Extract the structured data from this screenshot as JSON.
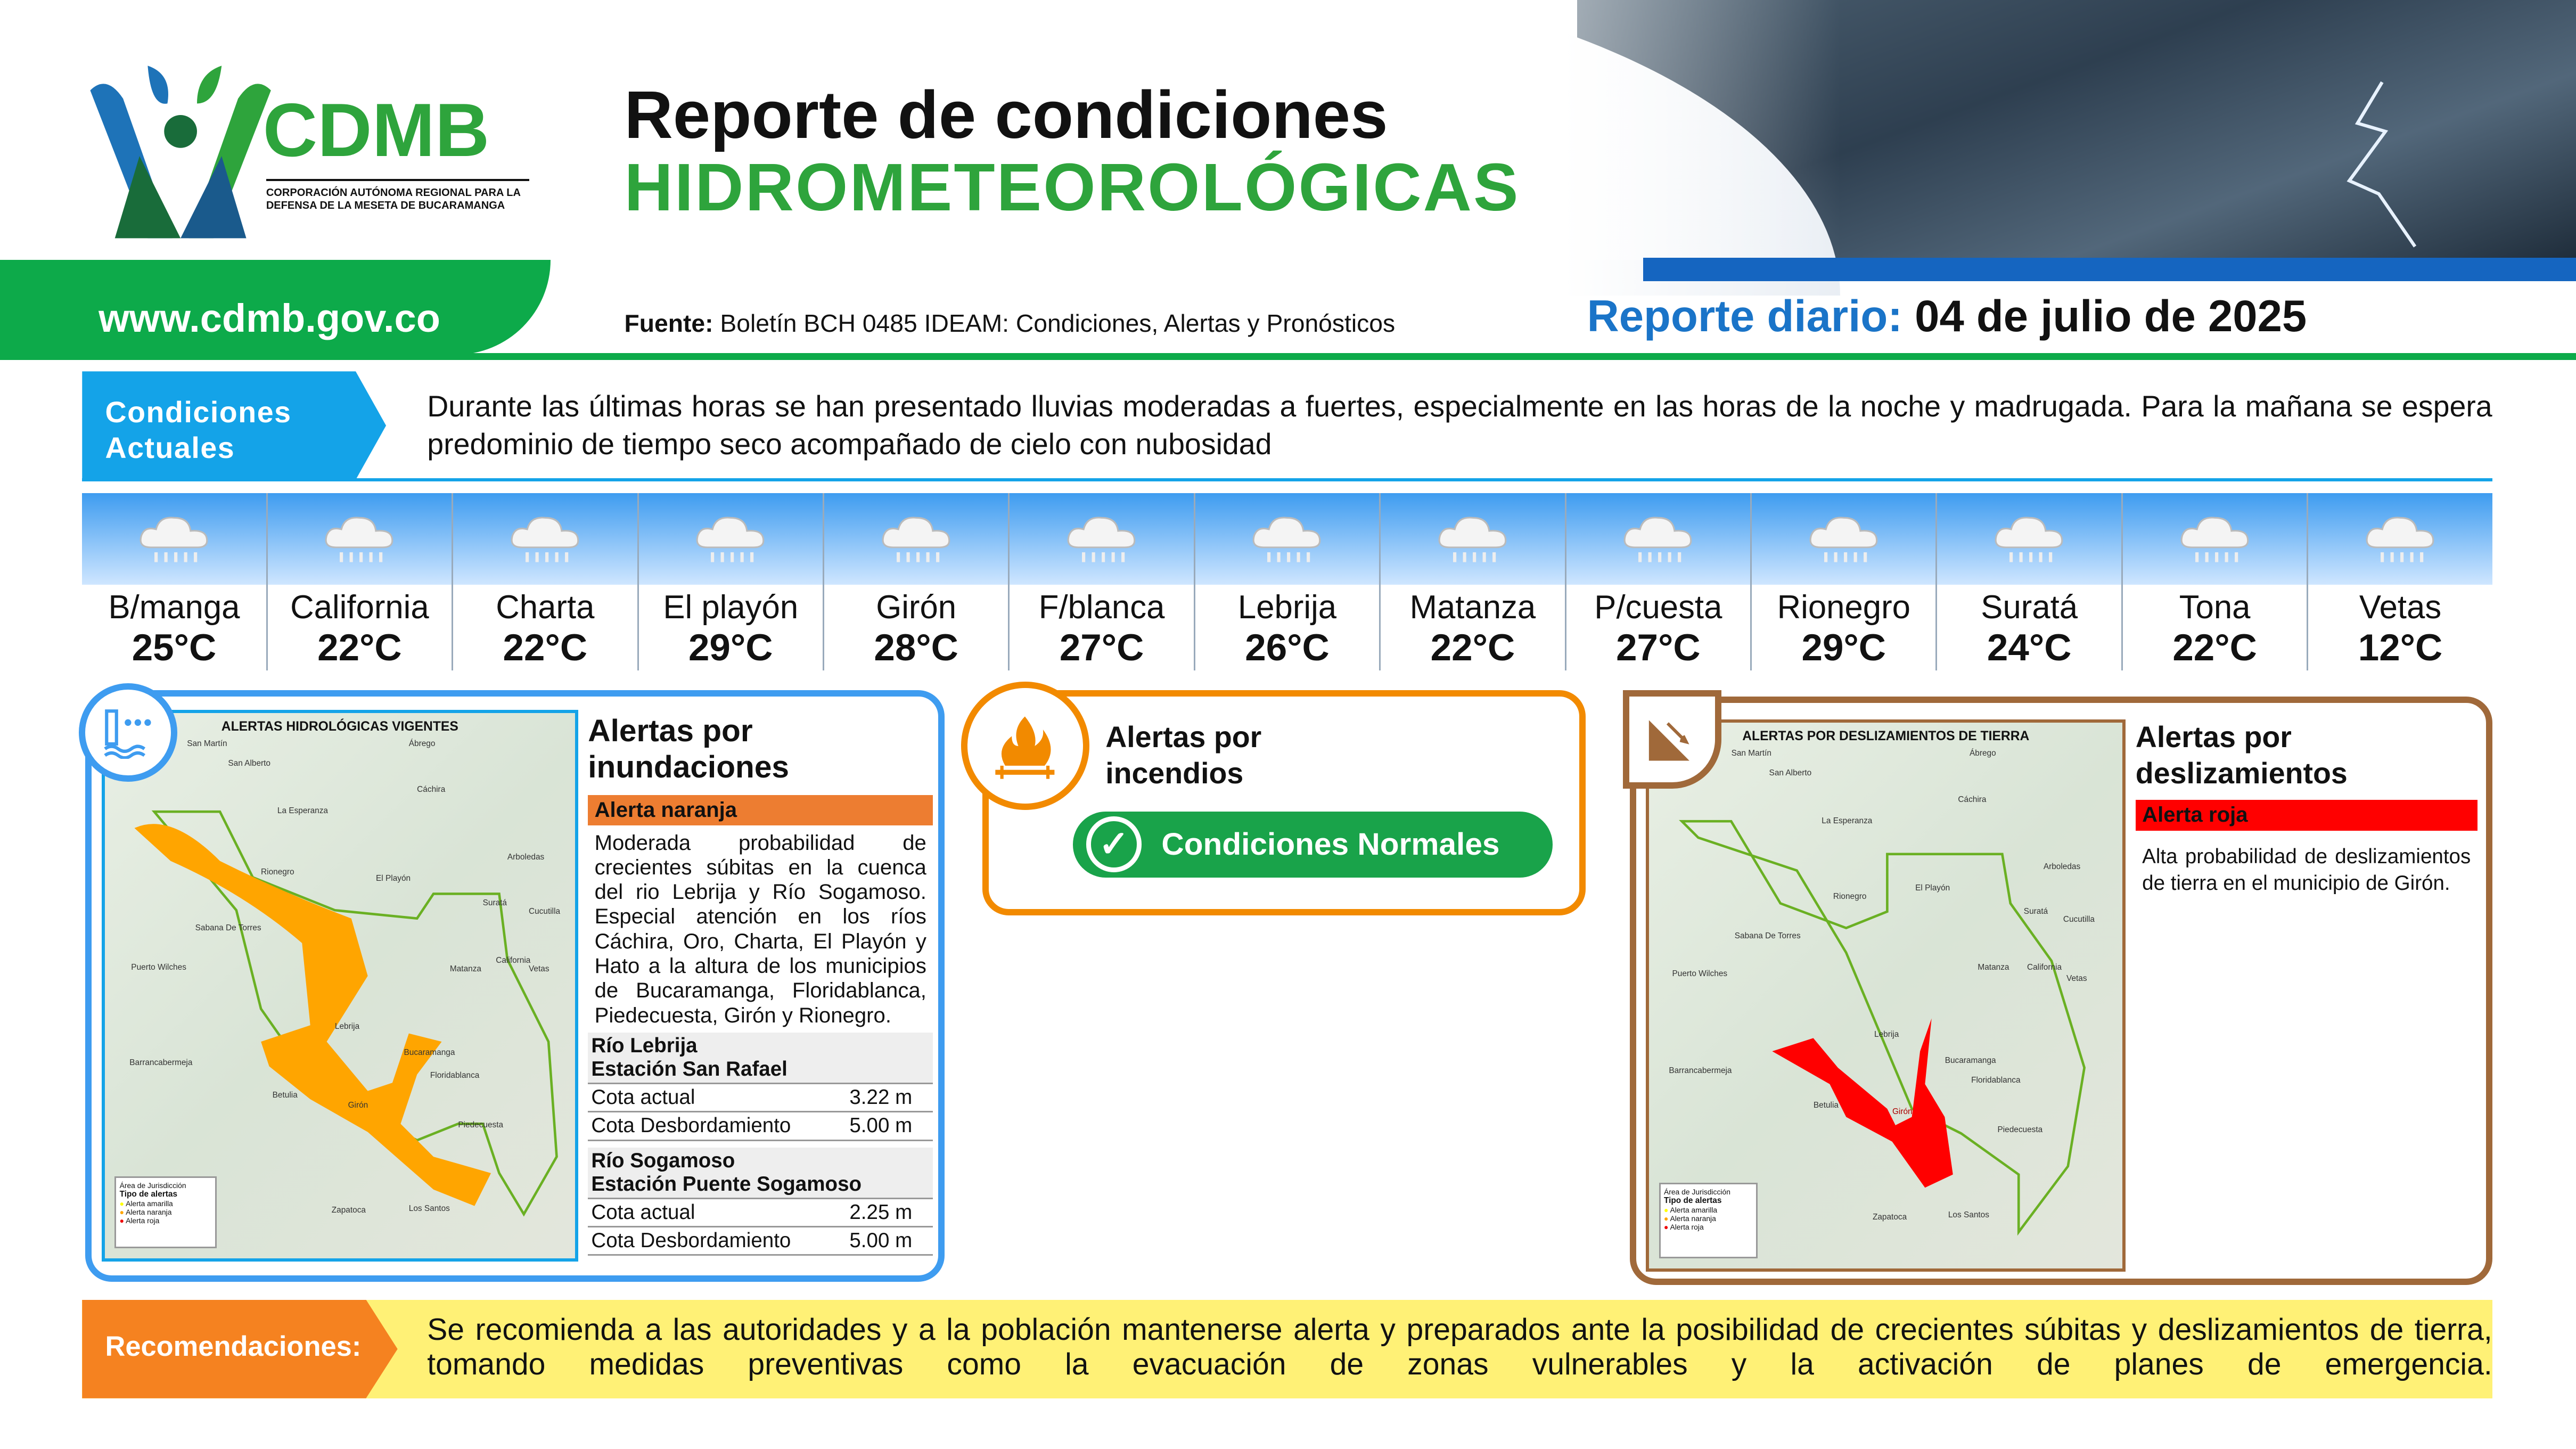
{
  "header": {
    "title_line1": "Reporte de condiciones",
    "title_line2": "HIDROMETEOROLÓGICAS",
    "logo_text": "CDMB",
    "logo_subtitle": "CORPORACIÓN AUTÓNOMA REGIONAL PARA LA DEFENSA DE LA MESETA DE BUCARAMANGA",
    "website": "www.cdmb.gov.co",
    "source_label": "Fuente:",
    "source_text": " Boletín BCH 0485 IDEAM: Condiciones, Alertas y Pronósticos",
    "report_label": "Reporte diario: ",
    "report_date": "04 de julio de 2025"
  },
  "colors": {
    "green": "#0daa4a",
    "blue": "#14a3e8",
    "orange": "#f58220",
    "red": "#ff0000",
    "brown": "#a0693a",
    "yellow": "#fff176"
  },
  "conditions": {
    "label": "Condiciones Actuales",
    "text": "Durante las últimas horas se han presentado lluvias moderadas a fuertes, especialmente en las horas de la noche y madrugada. Para la mañana se espera predominio de tiempo seco acompañado de cielo con nubosidad"
  },
  "weather": [
    {
      "city": "B/manga",
      "temp": "25°C",
      "icon": "rain-cloud-icon"
    },
    {
      "city": "California",
      "temp": "22°C",
      "icon": "rain-cloud-icon"
    },
    {
      "city": "Charta",
      "temp": "22°C",
      "icon": "rain-cloud-icon"
    },
    {
      "city": "El playón",
      "temp": "29°C",
      "icon": "rain-cloud-icon"
    },
    {
      "city": "Girón",
      "temp": "28°C",
      "icon": "rain-cloud-icon"
    },
    {
      "city": "F/blanca",
      "temp": "27°C",
      "icon": "rain-cloud-icon"
    },
    {
      "city": "Lebrija",
      "temp": "26°C",
      "icon": "rain-cloud-icon"
    },
    {
      "city": "Matanza",
      "temp": "22°C",
      "icon": "rain-cloud-icon"
    },
    {
      "city": "P/cuesta",
      "temp": "27°C",
      "icon": "rain-cloud-icon"
    },
    {
      "city": "Rionegro",
      "temp": "29°C",
      "icon": "rain-cloud-icon"
    },
    {
      "city": "Suratá",
      "temp": "24°C",
      "icon": "rain-cloud-icon"
    },
    {
      "city": "Tona",
      "temp": "22°C",
      "icon": "rain-cloud-icon"
    },
    {
      "city": "Vetas",
      "temp": "12°C",
      "icon": "rain-cloud-icon"
    }
  ],
  "flood": {
    "title": "Alertas por inundaciones",
    "alert": "Alerta naranja",
    "text": "Moderada probabilidad de crecientes súbitas en la cuenca del rio Lebrija y Río Sogamoso. Especial atención en los ríos Cáchira, Oro, Charta, El Playón y Hato a la altura de los municipios de Bucaramanga, Floridablanca, Piedecuesta, Girón y Rionegro.",
    "stations": [
      {
        "river": "Río Lebrija",
        "station": "Estación San Rafael",
        "rows": [
          {
            "label": "Cota actual",
            "value": "3.22 m"
          },
          {
            "label": "Cota Desbordamiento",
            "value": "5.00 m"
          }
        ]
      },
      {
        "river": "Río Sogamoso",
        "station": "Estación Puente Sogamoso",
        "rows": [
          {
            "label": "Cota actual",
            "value": "2.25 m"
          },
          {
            "label": "Cota Desbordamiento",
            "value": "5.00 m"
          }
        ]
      }
    ],
    "map": {
      "title": "ALERTAS HIDROLÓGICAS VIGENTES",
      "labels": [
        "San Martín",
        "San Alberto",
        "Ábrego",
        "Cáchira",
        "La Esperanza",
        "Rionegro",
        "El Playón",
        "Sabana De Torres",
        "Puerto Wilches",
        "Matanza",
        "Suratá",
        "California",
        "Vetas",
        "Lebrija",
        "Bucaramanga",
        "Barrancabermeja",
        "Floridablanca",
        "Betulia",
        "Girón",
        "Piedecuesta",
        "Zapatoca",
        "Los Santos",
        "Arboledas",
        "Cucutilla"
      ],
      "legend_area": "Área de Jurisdicción",
      "legend_title": "Tipo de alertas",
      "legend_items": [
        "Alerta amarilla",
        "Alerta naranja",
        "Alerta roja"
      ]
    }
  },
  "fire": {
    "title": "Alertas por incendios",
    "status": "Condiciones Normales"
  },
  "landslide": {
    "title": "Alertas por deslizamientos",
    "alert": "Alerta roja",
    "text": "Alta probabilidad de deslizamientos de tierra en el municipio de Girón.",
    "map": {
      "title": "ALERTAS POR DESLIZAMIENTOS DE TIERRA",
      "labels": [
        "San Martín",
        "San Alberto",
        "Ábrego",
        "Cáchira",
        "La Esperanza",
        "Rionegro",
        "El Playón",
        "Sabana De Torres",
        "Puerto Wilches",
        "Matanza",
        "Suratá",
        "California",
        "Vetas",
        "Lebrija",
        "Bucaramanga",
        "Barrancabermeja",
        "Floridablanca",
        "Betulia",
        "Girón",
        "Piedecuesta",
        "Zapatoca",
        "Los Santos",
        "Arboledas",
        "Cucutilla"
      ],
      "legend_area": "Área de Jurisdicción",
      "legend_title": "Tipo de alertas",
      "legend_items": [
        "Alerta amarilla",
        "Alerta naranja",
        "Alerta roja"
      ]
    }
  },
  "recommendations": {
    "label": "Recomendaciones:",
    "text": "Se recomienda a las autoridades y a la población mantenerse alerta y preparados ante la posibilidad de crecientes súbitas y deslizamientos de tierra, tomando medidas preventivas como la evacuación de zonas vulnerables y la activación de planes de emergencia."
  }
}
